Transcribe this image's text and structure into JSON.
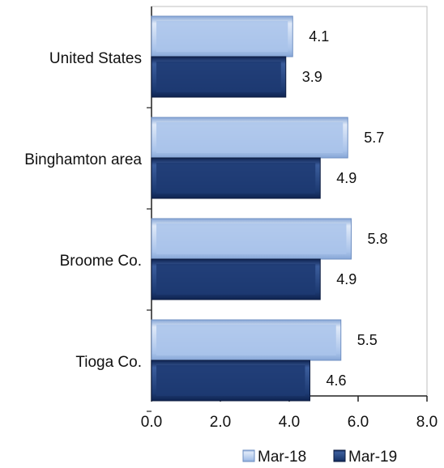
{
  "chart_data": {
    "type": "bar",
    "orientation": "horizontal",
    "categories": [
      "United States",
      "Binghamton area",
      "Broome Co.",
      "Tioga Co."
    ],
    "series": [
      {
        "name": "Mar-18",
        "values": [
          4.1,
          5.7,
          5.8,
          5.5
        ],
        "color": "#a9c3ea"
      },
      {
        "name": "Mar-19",
        "values": [
          3.9,
          4.9,
          4.9,
          4.6
        ],
        "color": "#1d3a72"
      }
    ],
    "value_labels": [
      [
        "4.1",
        "5.7",
        "5.8",
        "5.5"
      ],
      [
        "3.9",
        "4.9",
        "4.9",
        "4.6"
      ]
    ],
    "xlim": [
      0,
      8
    ],
    "xticks": [
      "0.0",
      "2.0",
      "4.0",
      "6.0",
      "8.0"
    ],
    "legend_position": "bottom-right",
    "grid": false
  }
}
